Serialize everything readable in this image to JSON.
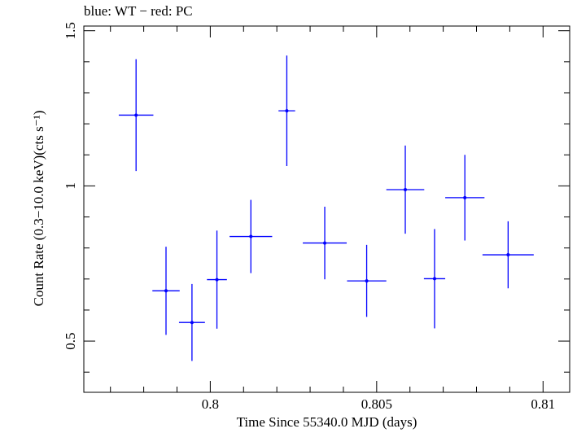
{
  "chart_data": {
    "type": "scatter",
    "title": "blue: WT − red: PC",
    "xlabel": "Time Since 55340.0 MJD (days)",
    "ylabel": "Count Rate (0.3−10.0 keV)(cts s⁻¹)",
    "xlim": [
      0.7962,
      0.8108
    ],
    "ylim": [
      0.335,
      1.515
    ],
    "xticks": [
      {
        "value": 0.8,
        "label": "0.8"
      },
      {
        "value": 0.805,
        "label": "0.805"
      },
      {
        "value": 0.81,
        "label": "0.81"
      }
    ],
    "yticks": [
      {
        "value": 0.5,
        "label": "0.5"
      },
      {
        "value": 1.0,
        "label": "1"
      },
      {
        "value": 1.5,
        "label": "1.5"
      }
    ],
    "series": [
      {
        "color": "#0000ff",
        "points": [
          {
            "x": 0.79777,
            "xerr": 0.00052,
            "y": 1.228,
            "yerr": 0.18
          },
          {
            "x": 0.79867,
            "xerr": 0.00041,
            "y": 0.662,
            "yerr": 0.142
          },
          {
            "x": 0.79945,
            "xerr": 0.00039,
            "y": 0.56,
            "yerr": 0.124
          },
          {
            "x": 0.8002,
            "xerr": 0.0003,
            "y": 0.698,
            "yerr": 0.158
          },
          {
            "x": 0.80122,
            "xerr": 0.00064,
            "y": 0.837,
            "yerr": 0.118
          },
          {
            "x": 0.8023,
            "xerr": 0.00025,
            "y": 1.242,
            "yerr": 0.178
          },
          {
            "x": 0.80344,
            "xerr": 0.00066,
            "y": 0.816,
            "yerr": 0.117
          },
          {
            "x": 0.8047,
            "xerr": 0.00059,
            "y": 0.694,
            "yerr": 0.116
          },
          {
            "x": 0.80586,
            "xerr": 0.00057,
            "y": 0.988,
            "yerr": 0.142
          },
          {
            "x": 0.80674,
            "xerr": 0.00032,
            "y": 0.701,
            "yerr": 0.16
          },
          {
            "x": 0.80765,
            "xerr": 0.00059,
            "y": 0.962,
            "yerr": 0.138
          },
          {
            "x": 0.80895,
            "xerr": 0.00077,
            "y": 0.778,
            "yerr": 0.108
          }
        ]
      }
    ],
    "grid": false
  }
}
